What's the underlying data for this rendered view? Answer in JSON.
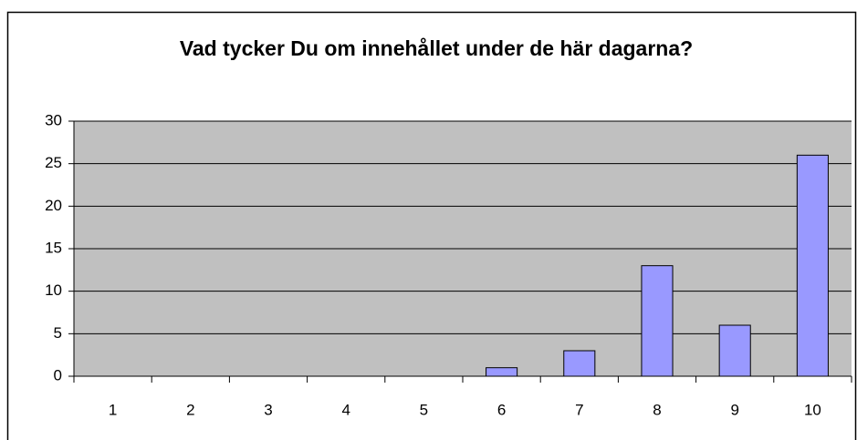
{
  "chart_data": {
    "type": "bar",
    "title": "Vad tycker Du om innehållet under de här dagarna?",
    "categories": [
      "1",
      "2",
      "3",
      "4",
      "5",
      "6",
      "7",
      "8",
      "9",
      "10"
    ],
    "values": [
      0,
      0,
      0,
      0,
      0,
      1,
      3,
      13,
      6,
      26
    ],
    "color": "#9999ff",
    "ylim": [
      0,
      30
    ],
    "yticks": [
      0,
      5,
      10,
      15,
      20,
      25,
      30
    ],
    "grid": true
  }
}
